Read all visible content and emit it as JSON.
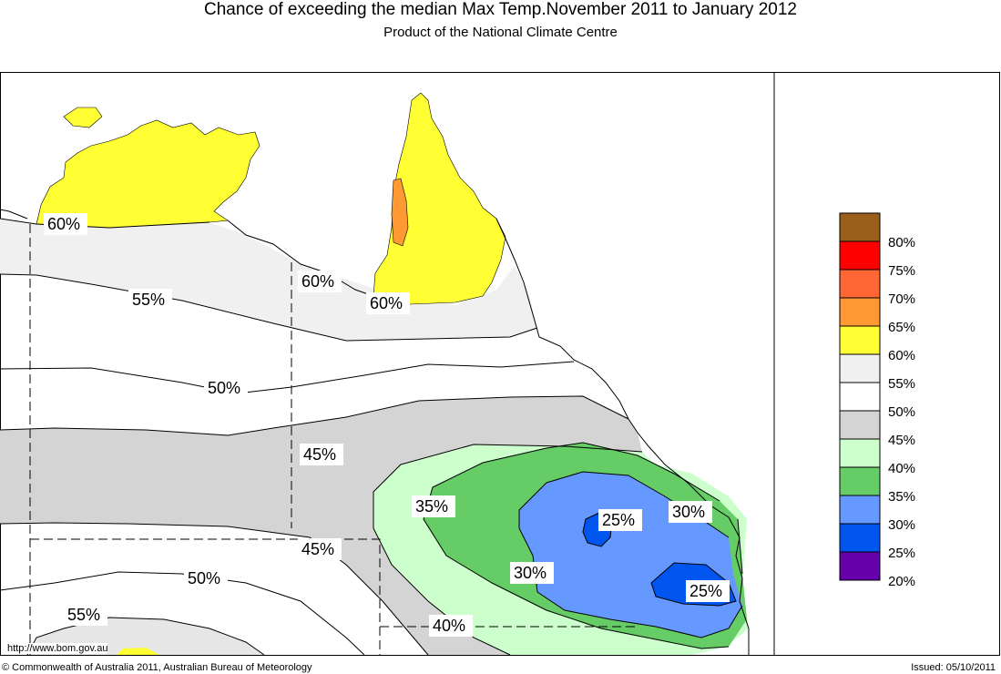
{
  "header": {
    "title": "Chance of exceeding the median Max Temp.November 2011 to January 2012",
    "subtitle": "Product of the National Climate Centre"
  },
  "map_labels": [
    "60%",
    "60%",
    "60%",
    "55%",
    "50%",
    "45%",
    "45%",
    "50%",
    "55%",
    "35%",
    "30%",
    "25%",
    "30%",
    "25%",
    "40%"
  ],
  "legend": {
    "items": [
      {
        "label": "80%",
        "color": "#9a5f1a"
      },
      {
        "label": "75%",
        "color": "#ff0000"
      },
      {
        "label": "70%",
        "color": "#ff6633"
      },
      {
        "label": "65%",
        "color": "#ff9933"
      },
      {
        "label": "60%",
        "color": "#ffff33"
      },
      {
        "label": "55%",
        "color": "#f0f0f0"
      },
      {
        "label": "50%",
        "color": "#ffffff"
      },
      {
        "label": "45%",
        "color": "#d4d4d4"
      },
      {
        "label": "40%",
        "color": "#ccffcc"
      },
      {
        "label": "35%",
        "color": "#66cc66"
      },
      {
        "label": "30%",
        "color": "#6699ff"
      },
      {
        "label": "25%",
        "color": "#0055ee"
      },
      {
        "label": "20%",
        "color": "#6600aa"
      }
    ],
    "top_swatch_color": "#9a5f1a"
  },
  "footer": {
    "url": "http://www.bom.gov.au",
    "copyright": "© Commonwealth of Australia 2011, Australian Bureau of Meteorology",
    "issued": "Issued: 05/10/2011"
  }
}
